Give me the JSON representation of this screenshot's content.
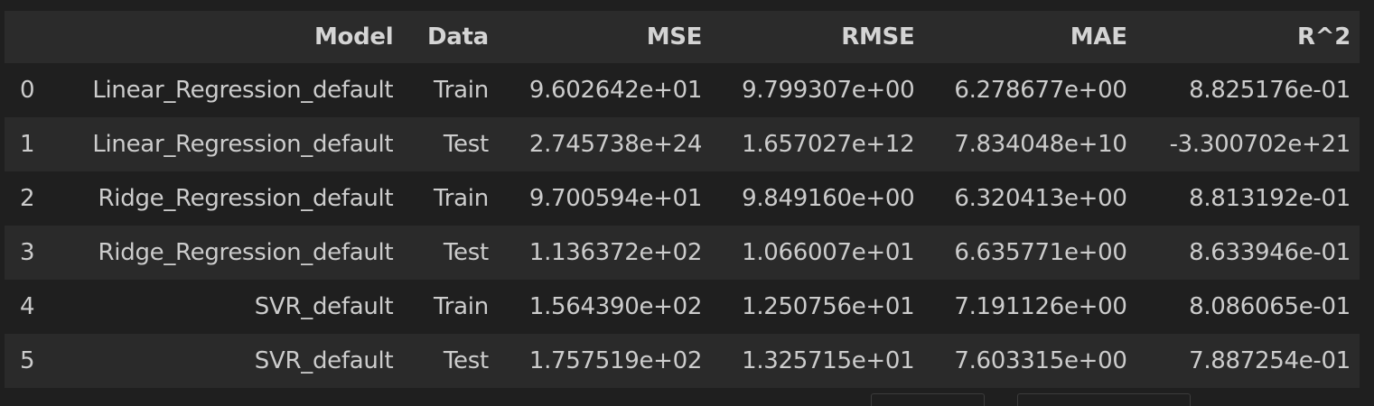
{
  "table": {
    "columns": [
      "",
      "Model",
      "Data",
      "MSE",
      "RMSE",
      "MAE",
      "R^2"
    ],
    "rows": [
      {
        "index": "0",
        "model": "Linear_Regression_default",
        "data": "Train",
        "mse": "9.602642e+01",
        "rmse": "9.799307e+00",
        "mae": "6.278677e+00",
        "r2": "8.825176e-01"
      },
      {
        "index": "1",
        "model": "Linear_Regression_default",
        "data": "Test",
        "mse": "2.745738e+24",
        "rmse": "1.657027e+12",
        "mae": "7.834048e+10",
        "r2": "-3.300702e+21"
      },
      {
        "index": "2",
        "model": "Ridge_Regression_default",
        "data": "Train",
        "mse": "9.700594e+01",
        "rmse": "9.849160e+00",
        "mae": "6.320413e+00",
        "r2": "8.813192e-01"
      },
      {
        "index": "3",
        "model": "Ridge_Regression_default",
        "data": "Test",
        "mse": "1.136372e+02",
        "rmse": "1.066007e+01",
        "mae": "6.635771e+00",
        "r2": "8.633946e-01"
      },
      {
        "index": "4",
        "model": "SVR_default",
        "data": "Train",
        "mse": "1.564390e+02",
        "rmse": "1.250756e+01",
        "mae": "7.191126e+00",
        "r2": "8.086065e-01"
      },
      {
        "index": "5",
        "model": "SVR_default",
        "data": "Test",
        "mse": "1.757519e+02",
        "rmse": "1.325715e+01",
        "mae": "7.603315e+00",
        "r2": "7.887254e-01"
      }
    ]
  },
  "colors": {
    "background": "#1f1f1f",
    "header_background": "#2b2b2b",
    "stripe_background": "#2a2a2a",
    "text": "#cccccc"
  }
}
